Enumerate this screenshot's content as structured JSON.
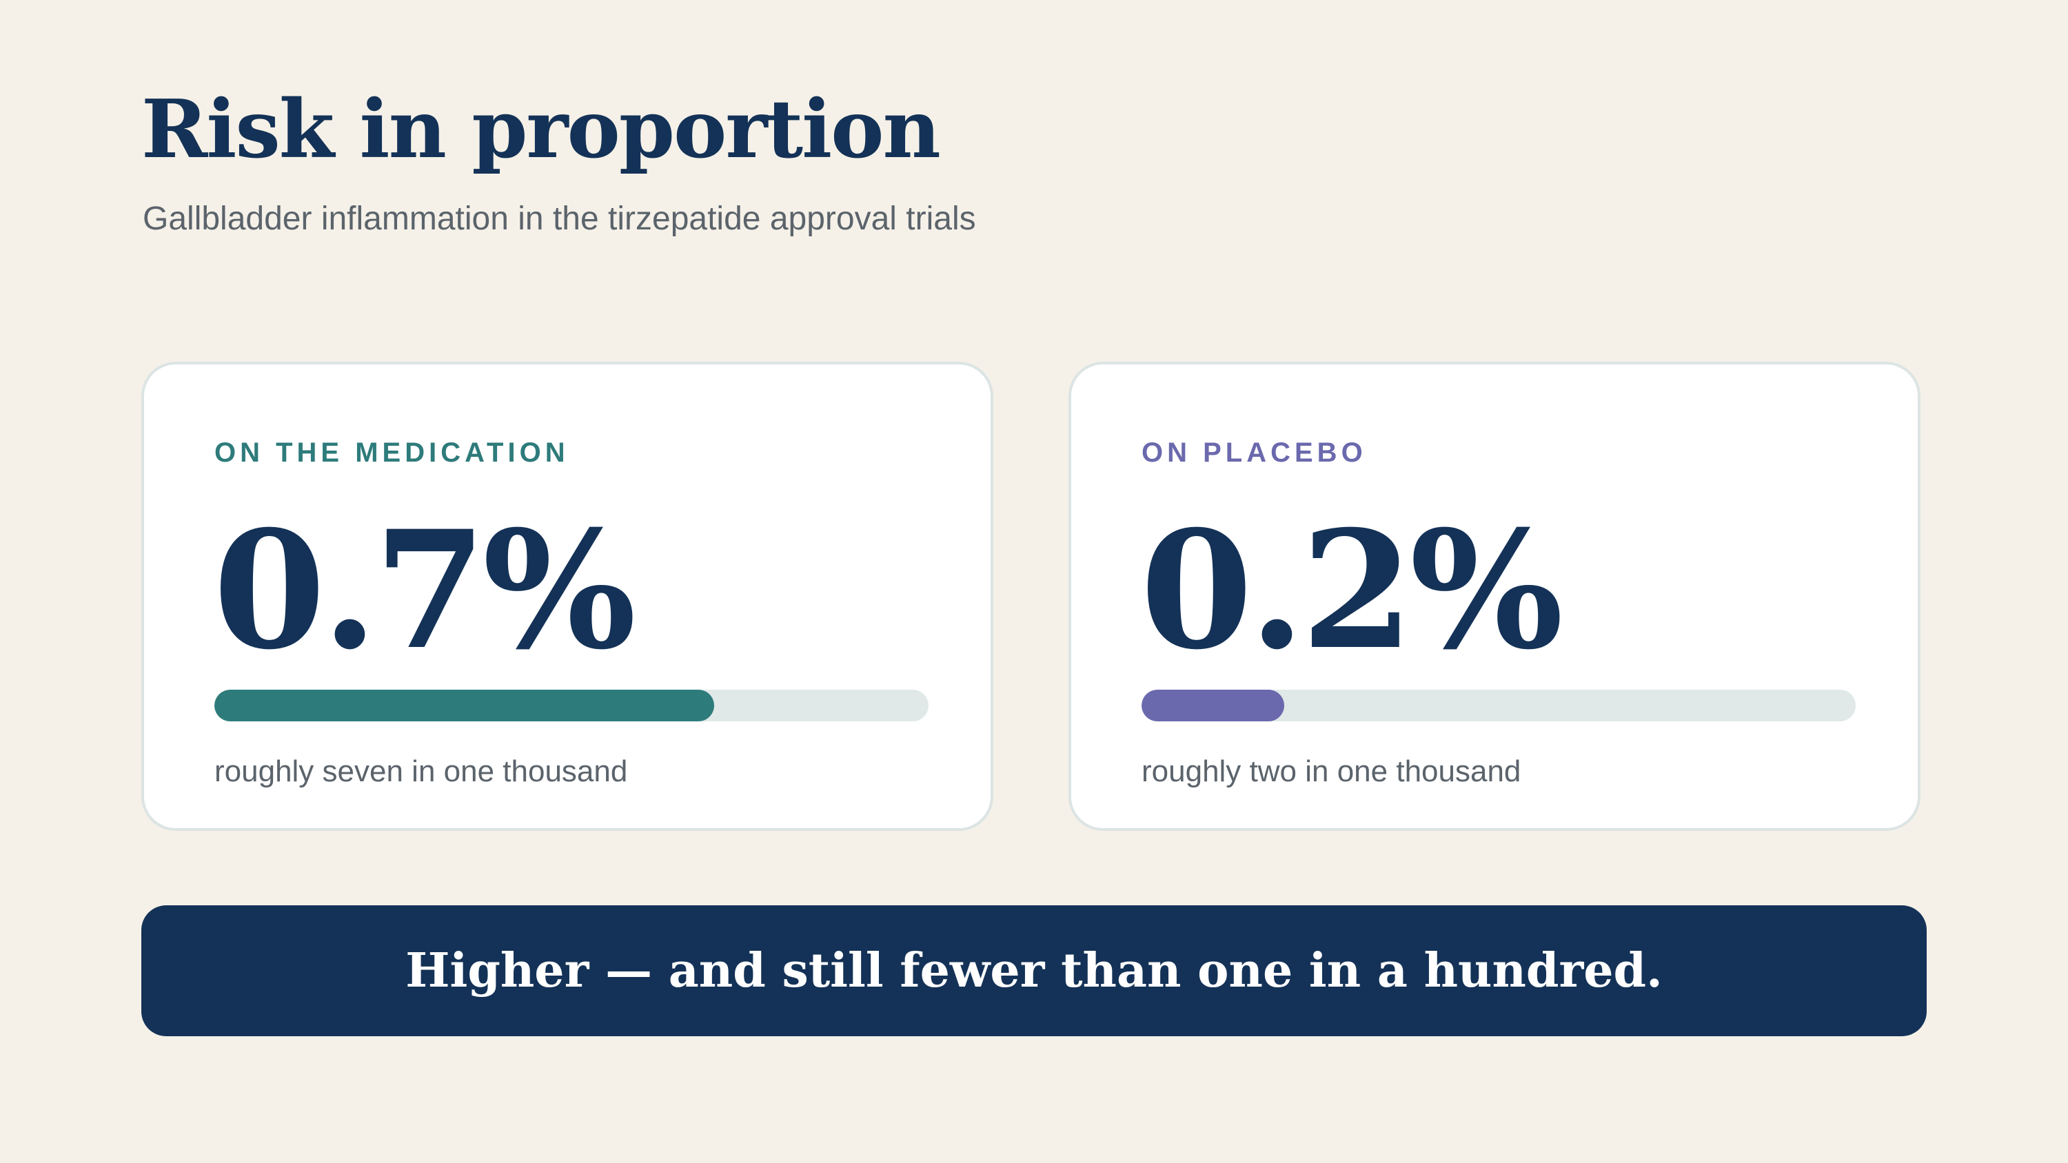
{
  "header": {
    "title": "Risk in proportion",
    "subtitle": "Gallbladder inflammation in the tirzepatide approval trials"
  },
  "cards": [
    {
      "label": "ON THE MEDICATION",
      "value": "0.7%",
      "bar_fraction": 0.7,
      "note": "roughly seven in one thousand",
      "color": "#2E7B7B"
    },
    {
      "label": "ON PLACEBO",
      "value": "0.2%",
      "bar_fraction": 0.2,
      "note": "roughly two in one thousand",
      "color": "#6B69AD"
    }
  ],
  "banner": {
    "text": "Higher — and still fewer than one in a hundred."
  },
  "colors": {
    "background": "#F5F1E8",
    "navy": "#143257",
    "card": "#FFFFFF",
    "track": "#E0E8E8",
    "muted_text": "#5B636B"
  }
}
